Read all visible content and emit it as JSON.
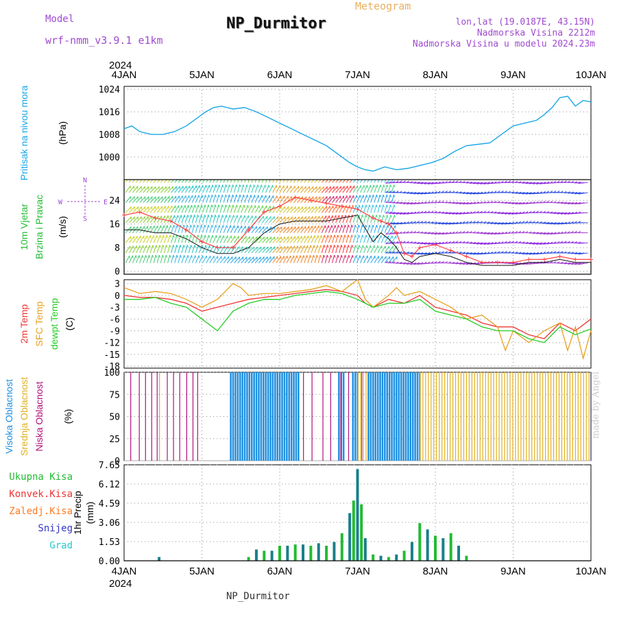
{
  "header": {
    "model_label": "Model",
    "model_name": "wrf-nmm_v3.9.1 e1km",
    "title": "NP_Durmitor",
    "meteogram_label": "Meteogram",
    "coords": "lon,lat (19.0187E, 43.15N)",
    "altitude": "Nadmorska Visina 2212m",
    "altitude_model": "Nadmorska Visina u modelu 2024.23m",
    "footer_station": "NP_Durmitor",
    "credit": "made by Angel"
  },
  "colors": {
    "pressure": "#1aa6e6",
    "wind_mean": "#111111",
    "wind_gust": "#ff4040",
    "temp_2m": "#ee3333",
    "temp_sfc": "#e6a020",
    "temp_dew": "#22cc22",
    "cloud_high": "#1e8fe0",
    "cloud_mid": "#e0b020",
    "cloud_low": "#b0107a",
    "precip_total": "#22bb33",
    "precip_conv": "#ee3333",
    "precip_frz": "#ff7a20",
    "precip_snow": "#3333cc",
    "precip_grad": "#22cccc",
    "title_purple": "#a04ad0",
    "meteogram_orange": "#e8b060"
  },
  "chart_data": [
    {
      "panel": "pressure",
      "type": "line",
      "ylabel_lines": [
        "Pritisak na nivou mora",
        "(hPa)"
      ],
      "ylim": [
        992,
        1025
      ],
      "yticks": [
        1000,
        1008,
        1016,
        1024
      ],
      "xlim": [
        0,
        6
      ],
      "x": [
        0,
        0.1,
        0.2,
        0.35,
        0.5,
        0.65,
        0.8,
        0.95,
        1.05,
        1.15,
        1.25,
        1.4,
        1.55,
        1.7,
        1.85,
        2.0,
        2.15,
        2.3,
        2.45,
        2.6,
        2.75,
        2.9,
        3.0,
        3.1,
        3.2,
        3.35,
        3.5,
        3.65,
        3.8,
        3.95,
        4.1,
        4.25,
        4.4,
        4.55,
        4.7,
        4.85,
        5.0,
        5.15,
        5.3,
        5.4,
        5.5,
        5.6,
        5.7,
        5.8,
        5.9,
        6.0
      ],
      "values": [
        1010,
        1011,
        1009,
        1008,
        1008,
        1009,
        1011,
        1014,
        1016,
        1017.5,
        1018,
        1017,
        1017.5,
        1016,
        1014,
        1012,
        1010,
        1008,
        1006,
        1004,
        1001,
        998,
        996.5,
        995.5,
        995,
        996.5,
        995.5,
        996,
        997,
        998,
        999.5,
        1002,
        1004,
        1004.5,
        1005,
        1008,
        1011,
        1012,
        1013,
        1015,
        1017.5,
        1021,
        1021.5,
        1018,
        1020,
        1019.5
      ]
    },
    {
      "panel": "wind",
      "type": "line",
      "ylabel_lines": [
        "10m Vjetar",
        "Brzina i Pravac",
        "(m/s)"
      ],
      "compass": {
        "n": "N",
        "s": "S",
        "e": "E",
        "w": "W"
      },
      "ylim": [
        -1,
        31
      ],
      "yticks": [
        0,
        8,
        16,
        24
      ],
      "xlim": [
        0,
        6
      ],
      "series": [
        {
          "name": "mean",
          "x": [
            0,
            0.2,
            0.4,
            0.6,
            0.8,
            1.0,
            1.2,
            1.4,
            1.6,
            1.8,
            2.0,
            2.2,
            2.4,
            2.6,
            2.8,
            3.0,
            3.2,
            3.3,
            3.4,
            3.5,
            3.6,
            3.7,
            3.8,
            4.0,
            4.2,
            4.4,
            4.6,
            4.8,
            5.0,
            5.2,
            5.4,
            5.6,
            5.8,
            6.0
          ],
          "values": [
            14,
            14,
            13,
            13,
            11,
            8,
            6,
            6,
            8,
            13,
            16,
            17,
            17,
            17,
            18,
            19,
            10,
            13,
            11,
            8,
            4,
            3,
            5,
            6,
            5,
            3,
            2,
            2,
            2,
            3,
            3,
            4,
            3,
            3
          ]
        },
        {
          "name": "gust",
          "x": [
            0,
            0.2,
            0.4,
            0.6,
            0.8,
            1.0,
            1.2,
            1.4,
            1.6,
            1.8,
            2.0,
            2.2,
            2.4,
            2.6,
            2.8,
            3.0,
            3.2,
            3.3,
            3.4,
            3.5,
            3.6,
            3.7,
            3.8,
            4.0,
            4.2,
            4.4,
            4.6,
            4.8,
            5.0,
            5.2,
            5.4,
            5.6,
            5.8,
            6.0
          ],
          "values": [
            19,
            20,
            18,
            17,
            14,
            10,
            8,
            8,
            14,
            20,
            22,
            25,
            24,
            23,
            22,
            21,
            18,
            17,
            16,
            13,
            6,
            5,
            8,
            9,
            7,
            5,
            3,
            3,
            3,
            4,
            4,
            5,
            4,
            4
          ]
        }
      ]
    },
    {
      "panel": "temperature",
      "type": "line",
      "ylabel_lines": [
        "2m Temp",
        "SFC Temp",
        "dewpt Temp",
        "(C)"
      ],
      "ylim": [
        -18.5,
        4
      ],
      "yticks": [
        3,
        0,
        -3,
        -6,
        -9,
        -12,
        -15,
        -18
      ],
      "xlim": [
        0,
        6
      ],
      "series": [
        {
          "name": "2m Temp",
          "x": [
            0,
            0.2,
            0.4,
            0.6,
            0.8,
            1.0,
            1.2,
            1.4,
            1.6,
            1.8,
            2.0,
            2.2,
            2.4,
            2.6,
            2.8,
            3.0,
            3.1,
            3.2,
            3.4,
            3.6,
            3.8,
            4.0,
            4.2,
            4.4,
            4.6,
            4.8,
            5.0,
            5.2,
            5.4,
            5.6,
            5.8,
            6.0
          ],
          "values": [
            0,
            -0.5,
            -0.5,
            -1,
            -2,
            -4,
            -3,
            -2,
            -1,
            -0.5,
            0,
            0.5,
            1,
            1.5,
            1,
            0,
            -2,
            -3,
            -1,
            -2,
            0,
            -3,
            -4,
            -5,
            -7,
            -8,
            -8,
            -10,
            -11,
            -7,
            -9,
            -6
          ]
        },
        {
          "name": "SFC Temp",
          "x": [
            0,
            0.2,
            0.4,
            0.6,
            0.8,
            1.0,
            1.2,
            1.4,
            1.5,
            1.6,
            1.8,
            2.0,
            2.2,
            2.4,
            2.6,
            2.8,
            3.0,
            3.1,
            3.2,
            3.4,
            3.5,
            3.6,
            3.8,
            4.0,
            4.2,
            4.4,
            4.6,
            4.8,
            4.9,
            5.0,
            5.2,
            5.4,
            5.6,
            5.7,
            5.8,
            5.9,
            6.0
          ],
          "values": [
            2,
            0.5,
            1,
            0.5,
            -1,
            -3,
            -1,
            3,
            2,
            0,
            0.5,
            0.5,
            1,
            1.5,
            2.5,
            1,
            4,
            -1,
            -3,
            0,
            2,
            0,
            1,
            -1,
            -3,
            -6,
            -5,
            -8,
            -14,
            -9,
            -12,
            -9,
            -7,
            -14,
            -8,
            -16,
            -9
          ]
        },
        {
          "name": "dewpt Temp",
          "x": [
            0,
            0.2,
            0.4,
            0.6,
            0.8,
            1.0,
            1.2,
            1.4,
            1.6,
            1.8,
            2.0,
            2.2,
            2.4,
            2.6,
            2.8,
            3.0,
            3.2,
            3.4,
            3.6,
            3.8,
            4.0,
            4.2,
            4.4,
            4.6,
            4.8,
            5.0,
            5.2,
            5.4,
            5.6,
            5.8,
            6.0
          ],
          "values": [
            -1,
            -1,
            -0.5,
            -2,
            -3,
            -6,
            -9,
            -4,
            -2,
            -1,
            -1,
            0,
            0.5,
            1,
            0.5,
            -1,
            -3,
            -2,
            -2,
            -1,
            -4,
            -5,
            -6,
            -8,
            -9,
            -9,
            -11,
            -12,
            -8,
            -10,
            -8.5
          ]
        }
      ]
    },
    {
      "panel": "clouds",
      "type": "bar",
      "ylabel_lines": [
        "Visoka Oblacnost",
        "Srednja Oblacnost",
        "Niska Oblacnost",
        "(%)"
      ],
      "ylim": [
        0,
        100
      ],
      "yticks": [
        0,
        25,
        50,
        75,
        100
      ],
      "xlim": [
        0,
        6
      ],
      "high_ranges": [
        [
          1.36,
          2.25
        ],
        [
          2.75,
          2.82
        ],
        [
          2.93,
          3.0
        ],
        [
          3.13,
          3.8
        ]
      ],
      "mid_ranges": [
        [
          0.45,
          0.48
        ],
        [
          3.0,
          3.13
        ],
        [
          3.8,
          6.0
        ]
      ],
      "low_sticks": [
        0.08,
        0.19,
        0.27,
        0.35,
        0.42,
        0.55,
        0.63,
        0.71,
        0.8,
        0.88,
        0.94,
        2.3,
        2.41,
        2.55,
        2.65,
        2.78,
        2.88,
        3.05
      ]
    },
    {
      "panel": "precip",
      "type": "bar",
      "ylabel_lines": [
        "1hr Precip",
        "(mm)"
      ],
      "ylim": [
        0,
        7.65
      ],
      "yticks": [
        0,
        1.53,
        3.06,
        4.59,
        6.12,
        7.65
      ],
      "xlim": [
        0,
        6
      ],
      "x": [
        0.45,
        1.6,
        1.7,
        1.8,
        1.9,
        2.0,
        2.1,
        2.2,
        2.3,
        2.4,
        2.5,
        2.6,
        2.7,
        2.8,
        2.9,
        2.95,
        3.0,
        3.05,
        3.1,
        3.2,
        3.3,
        3.4,
        3.5,
        3.6,
        3.7,
        3.8,
        3.9,
        4.0,
        4.1,
        4.2,
        4.3,
        4.4
      ],
      "values": [
        0.3,
        0.3,
        0.9,
        0.8,
        0.8,
        1.2,
        1.2,
        1.3,
        1.3,
        1.2,
        1.4,
        1.2,
        1.5,
        2.2,
        3.8,
        4.8,
        7.3,
        4.5,
        1.8,
        0.5,
        0.4,
        0.3,
        0.5,
        0.8,
        1.5,
        3.0,
        2.5,
        2.0,
        1.8,
        2.2,
        1.2,
        0.4
      ]
    }
  ],
  "axes": {
    "top_year": "2024",
    "bottom_year": "2024",
    "xticks": [
      "4JAN",
      "5JAN",
      "6JAN",
      "7JAN",
      "8JAN",
      "9JAN",
      "10JAN"
    ]
  },
  "legend_precip": [
    "Ukupna Kisa",
    "Konvek.Kisa",
    "Zaledj.Kisa",
    "Snijeg",
    "Grad"
  ]
}
